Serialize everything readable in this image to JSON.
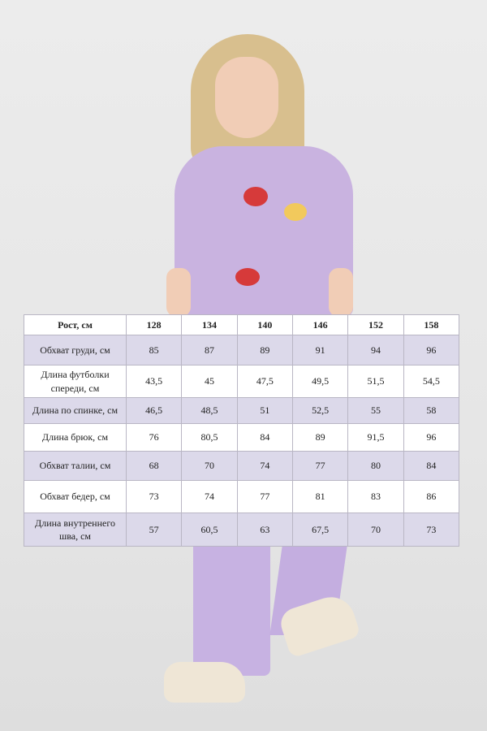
{
  "size_table": {
    "header": [
      "Рост, см",
      "128",
      "134",
      "140",
      "146",
      "152",
      "158"
    ],
    "rows": [
      {
        "label": "Обхват груди, см",
        "values": [
          "85",
          "87",
          "89",
          "91",
          "94",
          "96"
        ]
      },
      {
        "label": "Длина футболки спереди, см",
        "values": [
          "43,5",
          "45",
          "47,5",
          "49,5",
          "51,5",
          "54,5"
        ]
      },
      {
        "label": "Длина по спинке, см",
        "values": [
          "46,5",
          "48,5",
          "51",
          "52,5",
          "55",
          "58"
        ]
      },
      {
        "label": "Длина брюк, см",
        "values": [
          "76",
          "80,5",
          "84",
          "89",
          "91,5",
          "96"
        ]
      },
      {
        "label": "Обхват талии, см",
        "values": [
          "68",
          "70",
          "74",
          "77",
          "80",
          "84"
        ]
      },
      {
        "label": "Обхват бедер, см",
        "values": [
          "73",
          "74",
          "77",
          "81",
          "83",
          "86"
        ]
      },
      {
        "label": "Длина внутреннего шва, см",
        "values": [
          "57",
          "60,5",
          "63",
          "67,5",
          "70",
          "73"
        ]
      }
    ],
    "colors": {
      "stripe": "#dcd9ea",
      "border": "#b9b6c4"
    }
  }
}
